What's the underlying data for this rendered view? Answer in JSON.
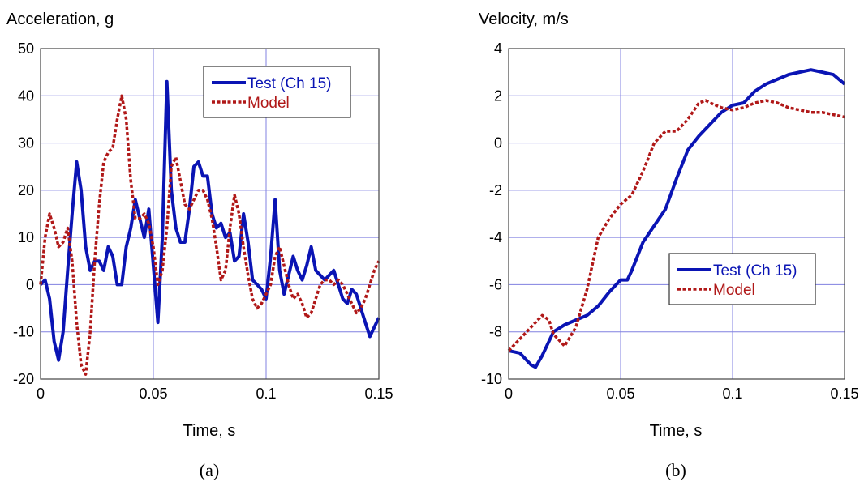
{
  "chart_data": [
    {
      "type": "line",
      "title": "Acceleration, g",
      "xlabel": "Time, s",
      "ylabel": "Acceleration, g",
      "caption": "(a)",
      "xlim": [
        0,
        0.15
      ],
      "ylim": [
        -20,
        50
      ],
      "x_ticks": [
        "0",
        "0.05",
        "0.1",
        "0.15"
      ],
      "y_ticks": [
        "-20",
        "-10",
        "0",
        "10",
        "20",
        "30",
        "40",
        "50"
      ],
      "grid": true,
      "legend_position": "top-right",
      "series": [
        {
          "name": "Test (Ch 15)",
          "color": "#0a14b4",
          "style": "solid",
          "x": [
            0,
            0.002,
            0.004,
            0.006,
            0.008,
            0.01,
            0.012,
            0.014,
            0.016,
            0.018,
            0.02,
            0.022,
            0.024,
            0.026,
            0.028,
            0.03,
            0.032,
            0.034,
            0.036,
            0.038,
            0.04,
            0.042,
            0.044,
            0.046,
            0.048,
            0.05,
            0.052,
            0.054,
            0.056,
            0.058,
            0.06,
            0.062,
            0.064,
            0.066,
            0.068,
            0.07,
            0.072,
            0.074,
            0.076,
            0.078,
            0.08,
            0.082,
            0.084,
            0.086,
            0.088,
            0.09,
            0.092,
            0.094,
            0.096,
            0.098,
            0.1,
            0.102,
            0.104,
            0.106,
            0.108,
            0.11,
            0.112,
            0.114,
            0.116,
            0.118,
            0.12,
            0.122,
            0.124,
            0.126,
            0.128,
            0.13,
            0.132,
            0.134,
            0.136,
            0.138,
            0.14,
            0.142,
            0.144,
            0.146,
            0.148,
            0.15
          ],
          "y": [
            0,
            1,
            -3,
            -12,
            -16,
            -10,
            3,
            15,
            26,
            20,
            8,
            3,
            5,
            5,
            3,
            8,
            6,
            0,
            0,
            8,
            12,
            18,
            14,
            10,
            16,
            4,
            -8,
            10,
            43,
            20,
            12,
            9,
            9,
            16,
            25,
            26,
            23,
            23,
            15,
            12,
            13,
            10,
            11,
            5,
            6,
            15,
            9,
            1,
            0,
            -1,
            -3,
            6,
            18,
            3,
            -2,
            2,
            6,
            3,
            1,
            4,
            8,
            3,
            2,
            1,
            2,
            3,
            0,
            -3,
            -4,
            -1,
            -2,
            -5,
            -8,
            -11,
            -9,
            -7
          ]
        },
        {
          "name": "Model",
          "color": "#b01818",
          "style": "dashed",
          "x": [
            0,
            0.002,
            0.004,
            0.006,
            0.008,
            0.01,
            0.012,
            0.014,
            0.016,
            0.018,
            0.02,
            0.022,
            0.024,
            0.026,
            0.028,
            0.03,
            0.032,
            0.034,
            0.036,
            0.038,
            0.04,
            0.042,
            0.044,
            0.046,
            0.048,
            0.05,
            0.052,
            0.054,
            0.056,
            0.058,
            0.06,
            0.062,
            0.064,
            0.066,
            0.068,
            0.07,
            0.072,
            0.074,
            0.076,
            0.078,
            0.08,
            0.082,
            0.084,
            0.086,
            0.088,
            0.09,
            0.092,
            0.094,
            0.096,
            0.098,
            0.1,
            0.102,
            0.104,
            0.106,
            0.108,
            0.11,
            0.112,
            0.114,
            0.116,
            0.118,
            0.12,
            0.122,
            0.124,
            0.126,
            0.128,
            0.13,
            0.132,
            0.134,
            0.136,
            0.138,
            0.14,
            0.142,
            0.144,
            0.146,
            0.148,
            0.15
          ],
          "y": [
            0,
            10,
            15,
            12,
            8,
            9,
            12,
            5,
            -8,
            -17,
            -19,
            -10,
            5,
            17,
            26,
            28,
            29,
            35,
            40,
            35,
            22,
            14,
            14,
            15,
            13,
            8,
            0,
            3,
            12,
            25,
            27,
            22,
            17,
            16,
            18,
            20,
            20,
            18,
            14,
            8,
            1,
            3,
            12,
            19,
            15,
            8,
            2,
            -3,
            -5,
            -4,
            -2,
            0,
            6,
            8,
            4,
            0,
            -3,
            -2,
            -4,
            -7,
            -6,
            -3,
            0,
            1,
            1,
            0,
            1,
            0,
            -2,
            -4,
            -6,
            -5,
            -3,
            0,
            3,
            5
          ]
        }
      ]
    },
    {
      "type": "line",
      "title": "Velocity, m/s",
      "xlabel": "Time, s",
      "ylabel": "Velocity, m/s",
      "caption": "(b)",
      "xlim": [
        0,
        0.15
      ],
      "ylim": [
        -10,
        4
      ],
      "x_ticks": [
        "0",
        "0.05",
        "0.1",
        "0.15"
      ],
      "y_ticks": [
        "-10",
        "-8",
        "-6",
        "-4",
        "-2",
        "0",
        "2",
        "4"
      ],
      "grid": true,
      "legend_position": "center-right",
      "series": [
        {
          "name": "Test (Ch 15)",
          "color": "#0a14b4",
          "style": "solid",
          "x": [
            0,
            0.005,
            0.01,
            0.012,
            0.015,
            0.02,
            0.025,
            0.03,
            0.035,
            0.04,
            0.045,
            0.05,
            0.053,
            0.055,
            0.06,
            0.065,
            0.07,
            0.075,
            0.08,
            0.085,
            0.09,
            0.095,
            0.1,
            0.105,
            0.11,
            0.115,
            0.12,
            0.125,
            0.13,
            0.135,
            0.14,
            0.145,
            0.15
          ],
          "y": [
            -8.8,
            -8.9,
            -9.4,
            -9.5,
            -9.0,
            -8.0,
            -7.7,
            -7.5,
            -7.3,
            -6.9,
            -6.3,
            -5.8,
            -5.8,
            -5.4,
            -4.2,
            -3.5,
            -2.8,
            -1.5,
            -0.3,
            0.3,
            0.8,
            1.3,
            1.6,
            1.7,
            2.2,
            2.5,
            2.7,
            2.9,
            3.0,
            3.1,
            3.0,
            2.9,
            2.5
          ]
        },
        {
          "name": "Model",
          "color": "#b01818",
          "style": "dashed",
          "x": [
            0,
            0.005,
            0.01,
            0.015,
            0.018,
            0.02,
            0.025,
            0.03,
            0.035,
            0.04,
            0.045,
            0.05,
            0.055,
            0.06,
            0.065,
            0.07,
            0.075,
            0.08,
            0.085,
            0.088,
            0.09,
            0.095,
            0.1,
            0.105,
            0.11,
            0.115,
            0.12,
            0.125,
            0.13,
            0.135,
            0.14,
            0.145,
            0.15
          ],
          "y": [
            -8.8,
            -8.3,
            -7.8,
            -7.3,
            -7.5,
            -8.1,
            -8.6,
            -7.8,
            -6.2,
            -4.0,
            -3.2,
            -2.6,
            -2.2,
            -1.2,
            0.0,
            0.5,
            0.5,
            1.0,
            1.7,
            1.8,
            1.7,
            1.5,
            1.4,
            1.5,
            1.7,
            1.8,
            1.7,
            1.5,
            1.4,
            1.3,
            1.3,
            1.2,
            1.1
          ]
        }
      ]
    }
  ]
}
